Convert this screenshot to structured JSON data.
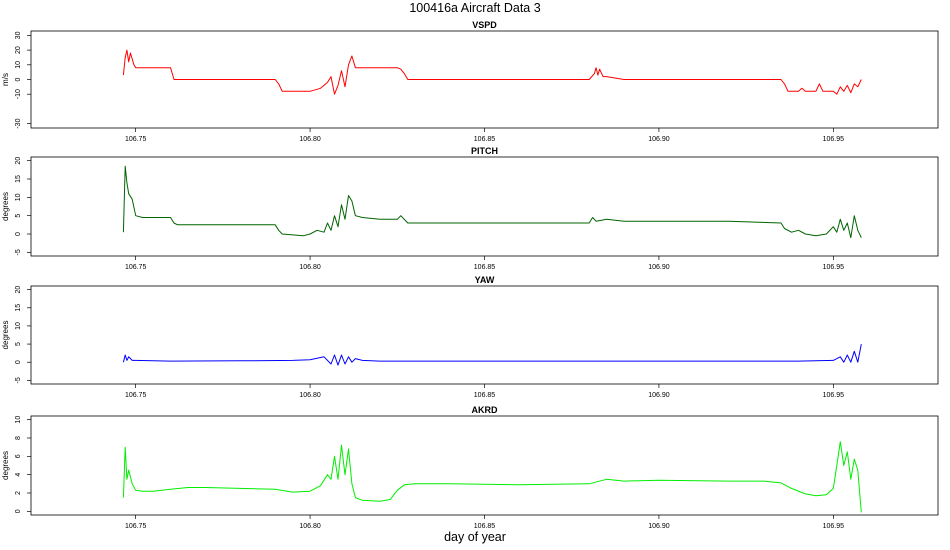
{
  "page": {
    "title": "100416a   Aircraft Data 3",
    "xlabel": "day of year"
  },
  "chart_data": [
    {
      "type": "line",
      "title": "VSPD",
      "xlabel": "",
      "ylabel": "m/s",
      "xlim": [
        106.72,
        106.98
      ],
      "ylim": [
        -33,
        33
      ],
      "xticks": [
        106.75,
        106.8,
        106.85,
        106.9,
        106.95
      ],
      "xtick_labels": [
        "106.75",
        "106.80",
        "106.85",
        "106.90",
        "106.95"
      ],
      "yticks": [
        -30,
        -10,
        0,
        10,
        20,
        30
      ],
      "ytick_labels": [
        "-30",
        "-10",
        "0",
        "10",
        "20",
        "30"
      ],
      "series": [
        {
          "color": "#ff0000",
          "x": [
            106.7465,
            106.747,
            106.7475,
            106.748,
            106.7485,
            106.749,
            106.7495,
            106.75,
            106.755,
            106.76,
            106.7605,
            106.761,
            106.77,
            106.78,
            106.79,
            106.791,
            106.792,
            106.8,
            106.803,
            106.805,
            106.806,
            106.807,
            106.808,
            106.809,
            106.81,
            106.811,
            106.812,
            106.813,
            106.82,
            106.825,
            106.826,
            106.827,
            106.828,
            106.84,
            106.86,
            106.88,
            106.8815,
            106.882,
            106.8825,
            106.883,
            106.884,
            106.885,
            106.89,
            106.9,
            106.92,
            106.935,
            106.936,
            106.937,
            106.94,
            106.941,
            106.942,
            106.945,
            106.946,
            106.947,
            106.95,
            106.951,
            106.952,
            106.953,
            106.954,
            106.955,
            106.956,
            106.957,
            106.958
          ],
          "y": [
            3,
            15,
            20,
            12,
            18,
            14,
            10,
            8,
            8,
            8,
            4,
            0,
            0,
            0,
            0,
            -3,
            -8,
            -8,
            -6,
            -2,
            2,
            -10,
            -4,
            6,
            -5,
            10,
            16,
            8,
            8,
            8,
            7,
            4,
            0,
            0,
            0,
            0,
            4,
            8,
            3,
            7,
            2,
            2,
            0,
            0,
            0,
            0,
            -3,
            -8,
            -8,
            -6,
            -8,
            -8,
            -3,
            -8,
            -8,
            -10,
            -5,
            -8,
            -4,
            -9,
            -3,
            -5,
            0
          ]
        }
      ]
    },
    {
      "type": "line",
      "title": "PITCH",
      "xlabel": "",
      "ylabel": "degrees",
      "xlim": [
        106.72,
        106.98
      ],
      "ylim": [
        -6,
        21
      ],
      "xticks": [
        106.75,
        106.8,
        106.85,
        106.9,
        106.95
      ],
      "xtick_labels": [
        "106.75",
        "106.80",
        "106.85",
        "106.90",
        "106.95"
      ],
      "yticks": [
        -5,
        0,
        5,
        10,
        15,
        20
      ],
      "ytick_labels": [
        "-5",
        "0",
        "5",
        "10",
        "15",
        "20"
      ],
      "series": [
        {
          "color": "#006400",
          "x": [
            106.7465,
            106.747,
            106.7475,
            106.748,
            106.749,
            106.75,
            106.752,
            106.755,
            106.76,
            106.761,
            106.762,
            106.77,
            106.78,
            106.79,
            106.791,
            106.792,
            106.798,
            106.8,
            106.802,
            106.804,
            106.805,
            106.806,
            106.807,
            106.808,
            106.809,
            106.81,
            106.811,
            106.812,
            106.813,
            106.815,
            106.82,
            106.825,
            106.826,
            106.828,
            106.84,
            106.86,
            106.88,
            106.881,
            106.882,
            106.885,
            106.89,
            106.9,
            106.92,
            106.935,
            106.936,
            106.938,
            106.94,
            106.942,
            106.945,
            106.948,
            106.95,
            106.951,
            106.952,
            106.953,
            106.954,
            106.955,
            106.956,
            106.957,
            106.958
          ],
          "y": [
            0.5,
            18.5,
            14,
            11,
            9.5,
            5,
            4.5,
            4.5,
            4.5,
            3,
            2.5,
            2.5,
            2.5,
            2.5,
            1,
            0,
            -0.5,
            0,
            1,
            0.5,
            3,
            1,
            5,
            2,
            8,
            4,
            10.5,
            9,
            5,
            4.5,
            4,
            4,
            5,
            3,
            3,
            3,
            3,
            4.5,
            3.5,
            4,
            3.5,
            3.5,
            3.5,
            3,
            1.5,
            0.5,
            1,
            0,
            -0.5,
            0,
            2,
            0.5,
            4,
            1,
            3,
            -1,
            5,
            1,
            -1
          ]
        }
      ]
    },
    {
      "type": "line",
      "title": "YAW",
      "xlabel": "",
      "ylabel": "degrees",
      "xlim": [
        106.72,
        106.98
      ],
      "ylim": [
        -6,
        21
      ],
      "xticks": [
        106.75,
        106.8,
        106.85,
        106.9,
        106.95
      ],
      "xtick_labels": [
        "106.75",
        "106.80",
        "106.85",
        "106.90",
        "106.95"
      ],
      "yticks": [
        -5,
        0,
        5,
        10,
        15,
        20
      ],
      "ytick_labels": [
        "-5",
        "0",
        "5",
        "10",
        "15",
        "20"
      ],
      "series": [
        {
          "color": "#0000ff",
          "x": [
            106.7465,
            106.747,
            106.7475,
            106.748,
            106.749,
            106.75,
            106.76,
            106.78,
            106.795,
            106.8,
            106.804,
            106.806,
            106.807,
            106.808,
            106.809,
            106.81,
            106.811,
            106.812,
            106.813,
            106.815,
            106.82,
            106.84,
            106.86,
            106.88,
            106.9,
            106.92,
            106.94,
            106.95,
            106.952,
            106.953,
            106.954,
            106.955,
            106.956,
            106.957,
            106.958
          ],
          "y": [
            0,
            2,
            0.5,
            1.5,
            0.5,
            0.5,
            0.3,
            0.4,
            0.5,
            0.7,
            1.5,
            -0.5,
            2,
            -0.8,
            2,
            -0.5,
            1.5,
            0,
            1,
            0.5,
            0.3,
            0.3,
            0.3,
            0.3,
            0.3,
            0.3,
            0.3,
            0.5,
            1.5,
            0,
            2,
            0,
            3,
            0,
            5
          ]
        }
      ]
    },
    {
      "type": "line",
      "title": "AKRD",
      "xlabel": "",
      "ylabel": "degrees",
      "xlim": [
        106.72,
        106.98
      ],
      "ylim": [
        -0.4,
        10.4
      ],
      "xticks": [
        106.75,
        106.8,
        106.85,
        106.9,
        106.95
      ],
      "xtick_labels": [
        "106.75",
        "106.80",
        "106.85",
        "106.90",
        "106.95"
      ],
      "yticks": [
        0,
        2,
        4,
        6,
        8,
        10
      ],
      "ytick_labels": [
        "0",
        "2",
        "4",
        "6",
        "8",
        "10"
      ],
      "series": [
        {
          "color": "#00ee00",
          "x": [
            106.7465,
            106.747,
            106.7475,
            106.748,
            106.749,
            106.75,
            106.752,
            106.755,
            106.76,
            106.765,
            106.77,
            106.78,
            106.79,
            106.795,
            106.8,
            106.803,
            106.805,
            106.806,
            106.807,
            106.808,
            106.809,
            106.81,
            106.811,
            106.812,
            106.813,
            106.815,
            106.82,
            106.823,
            106.825,
            106.827,
            106.83,
            106.84,
            106.86,
            106.88,
            106.885,
            106.89,
            106.9,
            106.92,
            106.93,
            106.935,
            106.938,
            106.942,
            106.945,
            106.948,
            106.95,
            106.951,
            106.952,
            106.953,
            106.954,
            106.955,
            106.956,
            106.957,
            106.958
          ],
          "y": [
            1.5,
            7,
            3.5,
            4.5,
            3,
            2.3,
            2.2,
            2.2,
            2.4,
            2.6,
            2.6,
            2.5,
            2.4,
            2.1,
            2.2,
            2.8,
            4,
            3.5,
            6,
            3.5,
            7.2,
            4,
            6.8,
            3,
            1.5,
            1.2,
            1.1,
            1.3,
            2.3,
            2.9,
            3,
            3,
            2.9,
            3,
            3.5,
            3.3,
            3.4,
            3.3,
            3.3,
            3.1,
            2.5,
            1.9,
            1.7,
            1.8,
            2.5,
            5,
            7.6,
            5,
            6.5,
            3.5,
            5.7,
            4.5,
            -0.1
          ]
        }
      ]
    }
  ]
}
